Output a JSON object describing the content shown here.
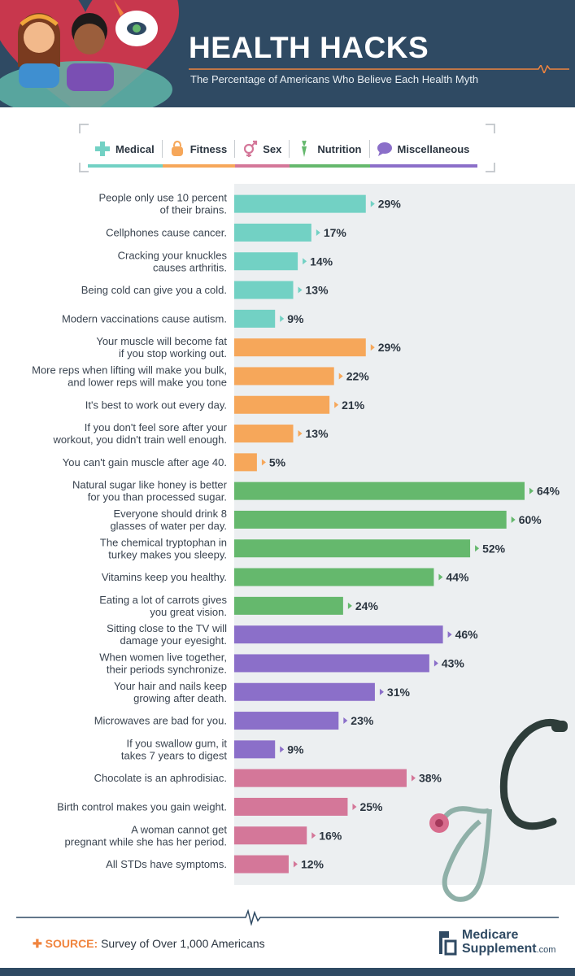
{
  "header": {
    "title": "HEALTH HACKS",
    "subtitle": "The Percentage of Americans Who Believe Each Health Myth"
  },
  "legend": [
    {
      "label": "Medical",
      "color": "#72d1c4",
      "icon": "medical-cross-icon"
    },
    {
      "label": "Fitness",
      "color": "#f6a75a",
      "icon": "kettlebell-icon"
    },
    {
      "label": "Sex",
      "color": "#d47799",
      "icon": "gender-symbol-icon"
    },
    {
      "label": "Nutrition",
      "color": "#65b86d",
      "icon": "carrot-icon"
    },
    {
      "label": "Miscellaneous",
      "color": "#8b6fc9",
      "icon": "speech-bubble-icon"
    }
  ],
  "chart_data": {
    "type": "bar",
    "orientation": "horizontal",
    "title": "HEALTH HACKS",
    "subtitle": "The Percentage of Americans Who Believe Each Health Myth",
    "unit": "%",
    "xlim": [
      0,
      64
    ],
    "categories": [
      "People only use 10 percent\nof their brains.",
      "Cellphones cause cancer.",
      "Cracking your knuckles\ncauses arthritis.",
      "Being cold can give you a cold.",
      "Modern vaccinations cause autism.",
      "Your muscle will become fat\nif you stop working out.",
      "More reps when lifting will make you bulk,\nand lower reps will make you tone",
      "It's best to work out every day.",
      "If you don't feel sore after your\nworkout, you didn't train well enough.",
      "You can't gain muscle after age 40.",
      "Natural sugar like honey is better\nfor you than processed sugar.",
      "Everyone should drink 8\nglasses of water per day.",
      "The chemical tryptophan in\nturkey makes you sleepy.",
      "Vitamins keep you healthy.",
      "Eating a lot of carrots gives\nyou great vision.",
      "Sitting close to the TV will\ndamage your eyesight.",
      "When women live together,\ntheir periods synchronize.",
      "Your hair and nails keep\ngrowing after death.",
      "Microwaves are bad for you.",
      "If you swallow gum, it\ntakes 7 years to digest",
      "Chocolate is an aphrodisiac.",
      "Birth control makes you gain weight.",
      "A woman cannot get\npregnant while she has her period.",
      "All STDs have symptoms."
    ],
    "values": [
      29,
      17,
      14,
      13,
      9,
      29,
      22,
      21,
      13,
      5,
      64,
      60,
      52,
      44,
      24,
      46,
      43,
      31,
      23,
      9,
      38,
      25,
      16,
      12
    ],
    "value_labels": [
      "29%",
      "17%",
      "14%",
      "13%",
      "9%",
      "29%",
      "22%",
      "21%",
      "13%",
      "5%",
      "64%",
      "60%",
      "52%",
      "44%",
      "24%",
      "46%",
      "43%",
      "31%",
      "23%",
      "9%",
      "38%",
      "25%",
      "16%",
      "12%"
    ],
    "groups": [
      "Medical",
      "Medical",
      "Medical",
      "Medical",
      "Medical",
      "Fitness",
      "Fitness",
      "Fitness",
      "Fitness",
      "Fitness",
      "Nutrition",
      "Nutrition",
      "Nutrition",
      "Nutrition",
      "Nutrition",
      "Miscellaneous",
      "Miscellaneous",
      "Miscellaneous",
      "Miscellaneous",
      "Miscellaneous",
      "Sex",
      "Sex",
      "Sex",
      "Sex"
    ],
    "group_colors": {
      "Medical": "#72d1c4",
      "Fitness": "#f6a75a",
      "Nutrition": "#65b86d",
      "Miscellaneous": "#8b6fc9",
      "Sex": "#d47799"
    },
    "grid": false,
    "legend_position": "top"
  },
  "footer": {
    "source_label": "SOURCE:",
    "source_text": "Survey of Over 1,000 Americans",
    "brand_line1": "Medicare",
    "brand_line2": "Supplement",
    "brand_suffix": ".com"
  }
}
